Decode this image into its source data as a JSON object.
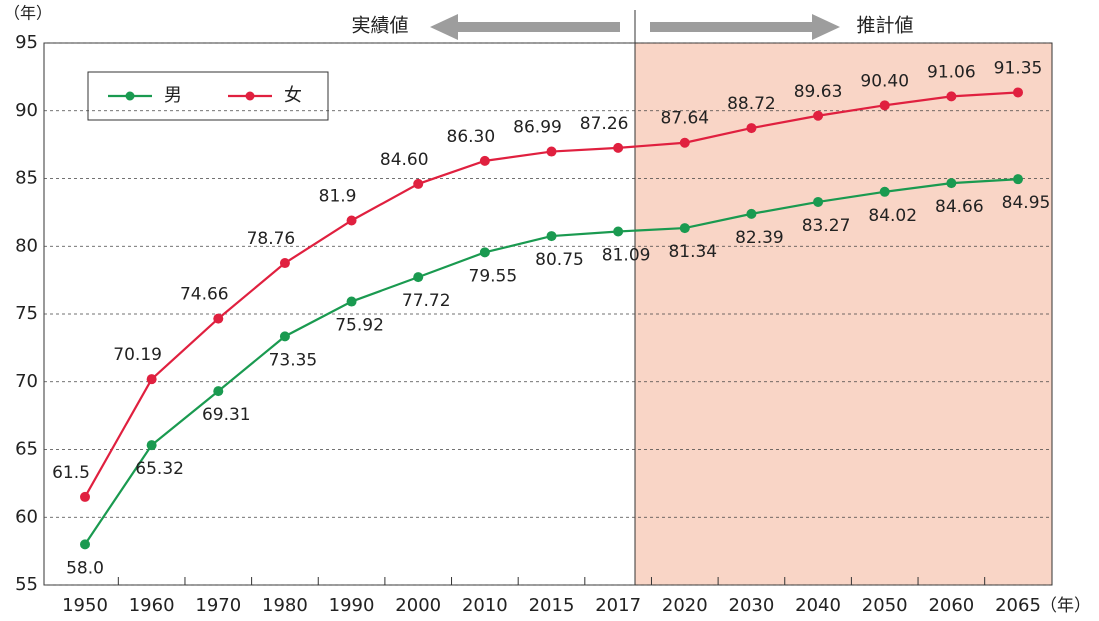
{
  "chart_data": {
    "type": "line",
    "y_unit": "（年）",
    "x_unit": "（年）",
    "actual_label": "実績値",
    "projection_label": "推計値",
    "categories": [
      "1950",
      "1960",
      "1970",
      "1980",
      "1990",
      "2000",
      "2010",
      "2015",
      "2017",
      "2020",
      "2030",
      "2040",
      "2050",
      "2060",
      "2065"
    ],
    "series": [
      {
        "name": "男",
        "color": "#1a9a50",
        "values": [
          58.0,
          65.32,
          69.31,
          73.35,
          75.92,
          77.72,
          79.55,
          80.75,
          81.09,
          81.34,
          82.39,
          83.27,
          84.02,
          84.66,
          84.95
        ],
        "value_labels": [
          "58.0",
          "65.32",
          "69.31",
          "73.35",
          "75.92",
          "77.72",
          "79.55",
          "80.75",
          "81.09",
          "81.34",
          "82.39",
          "83.27",
          "84.02",
          "84.66",
          "84.95"
        ]
      },
      {
        "name": "女",
        "color": "#e0203f",
        "values": [
          61.5,
          70.19,
          74.66,
          78.76,
          81.9,
          84.6,
          86.3,
          86.99,
          87.26,
          87.64,
          88.72,
          89.63,
          90.4,
          91.06,
          91.35
        ],
        "value_labels": [
          "61.5",
          "70.19",
          "74.66",
          "78.76",
          "81.9",
          "84.60",
          "86.30",
          "86.99",
          "87.26",
          "87.64",
          "88.72",
          "89.63",
          "90.40",
          "91.06",
          "91.35"
        ]
      }
    ],
    "ylim": [
      55,
      95
    ],
    "yticks": [
      55,
      60,
      65,
      70,
      75,
      80,
      85,
      90,
      95
    ],
    "grid": true
  }
}
